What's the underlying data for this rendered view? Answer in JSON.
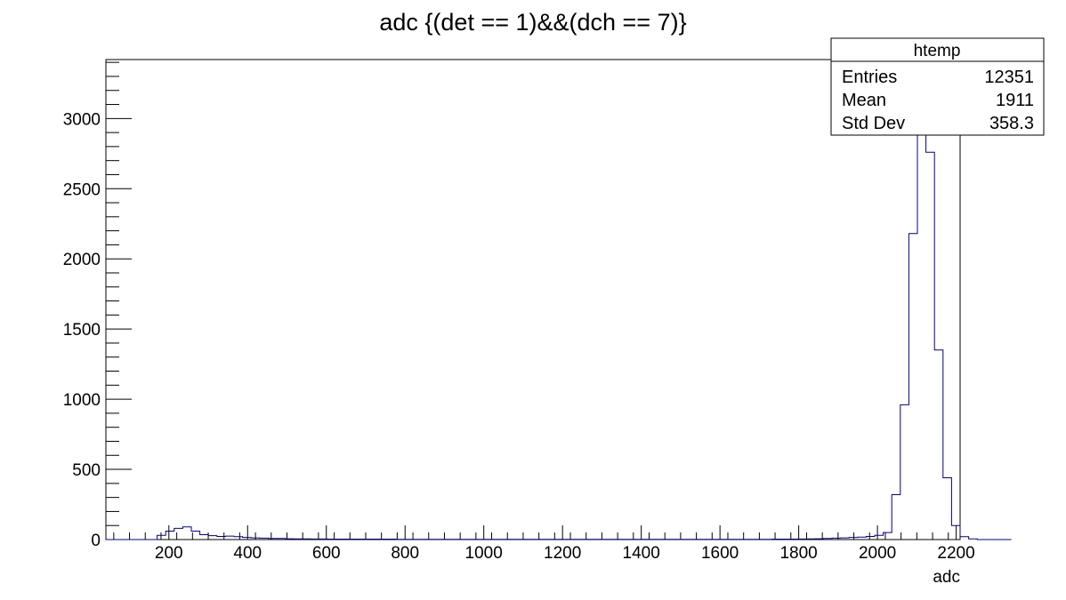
{
  "chart_data": {
    "type": "histogram",
    "title": "adc {(det == 1)&&(dch == 7)}",
    "xlabel": "adc",
    "ylabel": "",
    "xlim": [
      40,
      2210
    ],
    "ylim": [
      0,
      3420
    ],
    "x_ticks": [
      200,
      400,
      600,
      800,
      1000,
      1200,
      1400,
      1600,
      1800,
      2000,
      2200
    ],
    "y_ticks": [
      0,
      500,
      1000,
      1500,
      2000,
      2500,
      3000
    ],
    "line_color": "#00008b",
    "bin_start": 40,
    "bin_width": 21.7,
    "values": [
      0,
      0,
      0,
      0,
      0,
      0,
      30,
      60,
      80,
      90,
      60,
      35,
      28,
      22,
      25,
      20,
      15,
      12,
      10,
      8,
      8,
      6,
      5,
      5,
      4,
      4,
      3,
      3,
      3,
      3,
      3,
      3,
      3,
      3,
      2,
      2,
      2,
      2,
      2,
      2,
      2,
      2,
      2,
      2,
      2,
      2,
      2,
      2,
      2,
      2,
      2,
      2,
      2,
      2,
      2,
      2,
      2,
      2,
      2,
      2,
      2,
      2,
      2,
      2,
      2,
      2,
      2,
      2,
      2,
      2,
      2,
      2,
      2,
      2,
      2,
      2,
      2,
      2,
      3,
      3,
      3,
      4,
      5,
      6,
      8,
      10,
      12,
      15,
      18,
      22,
      30,
      50,
      320,
      960,
      2180,
      3300,
      2760,
      1350,
      440,
      100,
      20,
      5,
      0,
      0,
      0,
      0
    ],
    "stats_box": {
      "title": "htemp",
      "rows": [
        {
          "label": "Entries",
          "value": "12351"
        },
        {
          "label": "Mean",
          "value": "1911"
        },
        {
          "label": "Std Dev",
          "value": "358.3"
        }
      ]
    }
  }
}
